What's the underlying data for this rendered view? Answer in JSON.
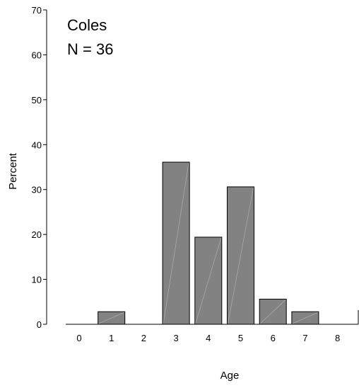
{
  "chart_data": {
    "type": "bar",
    "title": "Coles",
    "subtitle": "N = 36",
    "xlabel": "Age",
    "ylabel": "Percent",
    "categories": [
      "0",
      "1",
      "2",
      "3",
      "4",
      "5",
      "6",
      "7",
      "8"
    ],
    "values": [
      0,
      2.8,
      0,
      36.1,
      19.4,
      30.6,
      5.6,
      2.8,
      0
    ],
    "ylim": [
      0,
      70
    ],
    "yticks": [
      0,
      10,
      20,
      30,
      40,
      50,
      60,
      70
    ],
    "grid": false,
    "bar_color": "#828282",
    "bar_edge_color": "#000000"
  }
}
